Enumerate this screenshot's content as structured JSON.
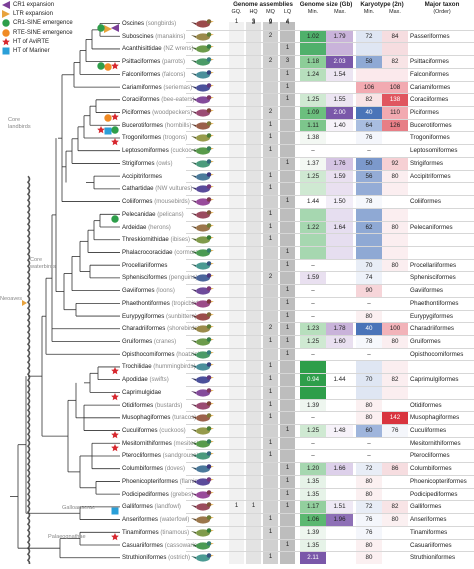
{
  "legend": [
    {
      "label": "CR1 expansion",
      "icon": "purple-triangle-left",
      "color": "#7b3f98"
    },
    {
      "label": "LTR expansion",
      "icon": "orange-triangle-right",
      "color": "#e8a33d"
    },
    {
      "label": "CR1-SINE emergence",
      "icon": "green-circle",
      "color": "#2e9e4a"
    },
    {
      "label": "RTE-SINE emergence",
      "icon": "orange-circle",
      "color": "#f08a24"
    },
    {
      "label": "HT of AviRTE",
      "icon": "red-star",
      "color": "#d7282f"
    },
    {
      "label": "HT of Mariner",
      "icon": "blue-square",
      "color": "#2a9fd8"
    }
  ],
  "headers": {
    "assemblies": "Genome assemblies",
    "gq": "GQ.",
    "hq": "HQ",
    "mq": "MQ",
    "lq": "LQ",
    "assembly_totals": [
      "1",
      "3",
      "9",
      "4"
    ],
    "genome_size": "Genome size (Gb)",
    "gs_min": "Min.",
    "gs_max": "Max.",
    "karyotype": "Karyotype (2n)",
    "ky_min": "Min.",
    "ky_max": "Max.",
    "major_taxon": "Major taxon",
    "order": "(Order)"
  },
  "clades": {
    "core_landbirds": "Core landbirds",
    "core_waterbirds": "Core waterbirds",
    "neoaves": "Neoaves",
    "galloanserae": "Galloanserae",
    "palaeognathae": "Palaeognathae"
  },
  "rows": [
    {
      "name": "Oscines",
      "common": "(songbirds)",
      "gq": "",
      "hq": "3",
      "mq": "9",
      "lq": "4",
      "gs_min": "",
      "gs_max": "",
      "ky_min": "",
      "ky_max": "",
      "order": "",
      "colors": {}
    },
    {
      "name": "Suboscines",
      "common": "(manakins)",
      "gq": "",
      "hq": "",
      "mq": "2",
      "lq": "",
      "gs_min": "1.02",
      "gs_max": "1.79",
      "ky_min": "72",
      "ky_max": "84",
      "order": "Passeriformes",
      "colors": {
        "gsmin": "#4fb06b",
        "gsmax": "#c9b3da",
        "kymin": "#dfe6f3",
        "kymax": "#f6dde0"
      }
    },
    {
      "name": "Acanthisittidae",
      "common": "(NZ wrens)",
      "gq": "",
      "hq": "",
      "mq": "",
      "lq": "1",
      "gs_min": "",
      "gs_max": "",
      "ky_min": "",
      "ky_max": "",
      "order": "",
      "colors": {
        "gsmin": "#4fb06b",
        "gsmax": "#c9b3da",
        "kymin": "#dfe6f3",
        "kymax": "#f6dde0"
      }
    },
    {
      "name": "Psittaciformes",
      "common": "(parrots)",
      "gq": "",
      "hq": "",
      "mq": "2",
      "lq": "3",
      "gs_min": "1.18",
      "gs_max": "2.03",
      "ky_min": "58",
      "ky_max": "82",
      "order": "Psittaciformes",
      "colors": {
        "gsmin": "#8ccd98",
        "gsmax": "#7a58a9",
        "kymin": "#8fa9d4",
        "kymax": "#f8e4e6"
      }
    },
    {
      "name": "Falconiformes",
      "common": "(falcons)",
      "gq": "",
      "hq": "",
      "mq": "",
      "lq": "1",
      "gs_min": "1.24",
      "gs_max": "1.54",
      "ky_min": "",
      "ky_max": "",
      "order": "Falconiformes",
      "colors": {
        "gsmin": "#b7dfbd",
        "gsmax": "#ece5f2",
        "kymin": "#fbe9ec",
        "kymax": "#fbe9ec"
      }
    },
    {
      "name": "Cariamiformes",
      "common": "(seriemas)",
      "gq": "",
      "hq": "",
      "mq": "",
      "lq": "1",
      "gs_min": "",
      "gs_max": "",
      "ky_min": "106",
      "ky_max": "108",
      "order": "Cariamiformes",
      "colors": {
        "kymin": "#f2aab1",
        "kymax": "#f2aab1"
      }
    },
    {
      "name": "Coraciiformes",
      "common": "(bee-eaters)",
      "gq": "",
      "hq": "",
      "mq": "",
      "lq": "1",
      "gs_min": "1.25",
      "gs_max": "1.55",
      "ky_min": "82",
      "ky_max": "138",
      "order": "Coraciiformes",
      "colors": {
        "gsmin": "#cfe9d2",
        "gsmax": "#ece5f2",
        "kymin": "#f8e4e6",
        "kymax": "#e0565f"
      }
    },
    {
      "name": "Piciformes",
      "common": "(woodpeckers)",
      "gq": "",
      "hq": "",
      "mq": "2",
      "lq": "",
      "gs_min": "1.09",
      "gs_max": "2.00",
      "ky_min": "40",
      "ky_max": "110",
      "order": "Piciformes",
      "colors": {
        "gsmin": "#6cbf7e",
        "gsmax": "#7a58a9",
        "kymin": "#4a74b8",
        "kymax": "#f2aab1"
      }
    },
    {
      "name": "Bucerotiformes",
      "common": "(hornbills)",
      "gq": "",
      "hq": "",
      "mq": "1",
      "lq": "",
      "gs_min": "1.11",
      "gs_max": "1.40",
      "ky_min": "64",
      "ky_max": "126",
      "order": "Bucerotiformes",
      "colors": {
        "gsmin": "#7dc68c",
        "gsmax": "#f6f2f9",
        "kymin": "#a9bde0",
        "kymax": "#e77e86"
      }
    },
    {
      "name": "Trogoniformes",
      "common": "(trogons)",
      "gq": "",
      "hq": "",
      "mq": "1",
      "lq": "",
      "gs_min": "1.38",
      "gs_max": "",
      "ky_min": "76",
      "ky_max": "",
      "order": "Trogoniformes",
      "colors": {
        "gsmin": "#f3f8f3",
        "kymin": "#f4f6fb"
      }
    },
    {
      "name": "Leptosomiformes",
      "common": "(cuckoo-roller)",
      "gq": "",
      "hq": "",
      "mq": "1",
      "lq": "",
      "gs_min": "–",
      "gs_max": "",
      "ky_min": "–",
      "ky_max": "",
      "order": "Leptosomiformes",
      "colors": {}
    },
    {
      "name": "Strigiformes",
      "common": "(owls)",
      "gq": "",
      "hq": "",
      "mq": "",
      "lq": "1",
      "gs_min": "1.37",
      "gs_max": "1.76",
      "ky_min": "50",
      "ky_max": "92",
      "order": "Strigiformes",
      "colors": {
        "gsmin": "#f3f8f3",
        "gsmax": "#d5c4e3",
        "kymin": "#7c99cc",
        "kymax": "#f6d0d4"
      }
    },
    {
      "name": "Accipitriformes",
      "common": "",
      "gq": "",
      "hq": "",
      "mq": "1",
      "lq": "",
      "gs_min": "1.25",
      "gs_max": "1.59",
      "ky_min": "56",
      "ky_max": "80",
      "order": "Accipitriformes",
      "colors": {
        "gsmin": "#cfe9d2",
        "gsmax": "#e9e0f0",
        "kymin": "#94acd6",
        "kymax": "#fbeef0"
      }
    },
    {
      "name": "Cathartidae",
      "common": "(NW vultures)",
      "gq": "",
      "hq": "",
      "mq": "1",
      "lq": "",
      "gs_min": "",
      "gs_max": "",
      "ky_min": "",
      "ky_max": "",
      "order": "",
      "colors": {
        "gsmin": "#cfe9d2",
        "gsmax": "#e9e0f0",
        "kymin": "#94acd6",
        "kymax": "#fbeef0"
      }
    },
    {
      "name": "Coliiformes",
      "common": "(mousebirds)",
      "gq": "",
      "hq": "",
      "mq": "",
      "lq": "1",
      "gs_min": "1.44",
      "gs_max": "1.50",
      "ky_min": "78",
      "ky_max": "",
      "order": "Coliiformes",
      "colors": {
        "gsmin": "#ffffff",
        "gsmax": "#f3eef8",
        "kymin": "#f6f8fc"
      }
    },
    {
      "name": "Pelecanidae",
      "common": "(pelicans)",
      "gq": "",
      "hq": "",
      "mq": "1",
      "lq": "",
      "gs_min": "",
      "gs_max": "",
      "ky_min": "",
      "ky_max": "",
      "order": "",
      "colors": {
        "gsmin": "#a6d7b0",
        "gsmax": "#e6def0",
        "kymin": "#8fa9d4",
        "kymax": "#fbeef0"
      }
    },
    {
      "name": "Ardeidae",
      "common": "(herons)",
      "gq": "",
      "hq": "",
      "mq": "1",
      "lq": "",
      "gs_min": "1.22",
      "gs_max": "1.64",
      "ky_min": "62",
      "ky_max": "80",
      "order": "Pelecaniformes",
      "colors": {
        "gsmin": "#a6d7b0",
        "gsmax": "#e6def0",
        "kymin": "#8fa9d4",
        "kymax": "#fbeef0"
      }
    },
    {
      "name": "Threskiornithidae",
      "common": "(ibises)",
      "gq": "",
      "hq": "",
      "mq": "1",
      "lq": "",
      "gs_min": "",
      "gs_max": "",
      "ky_min": "",
      "ky_max": "",
      "order": "",
      "colors": {
        "gsmin": "#a6d7b0",
        "gsmax": "#e6def0",
        "kymin": "#8fa9d4",
        "kymax": "#fbeef0"
      }
    },
    {
      "name": "Phalacrocoracidae",
      "common": "(cormorants)",
      "gq": "",
      "hq": "",
      "mq": "",
      "lq": "1",
      "gs_min": "",
      "gs_max": "",
      "ky_min": "",
      "ky_max": "",
      "order": "",
      "colors": {
        "gsmin": "#a6d7b0",
        "gsmax": "#e6def0",
        "kymin": "#8fa9d4",
        "kymax": "#fbeef0"
      }
    },
    {
      "name": "Procellariiformes",
      "common": "",
      "gq": "",
      "hq": "",
      "mq": "",
      "lq": "1",
      "gs_min": "–",
      "gs_max": "",
      "ky_min": "70",
      "ky_max": "80",
      "order": "Procellariiformes",
      "colors": {
        "kymin": "#e8edf6",
        "kymax": "#fbeef0"
      }
    },
    {
      "name": "Sphenisciformes",
      "common": "(penguins)",
      "gq": "",
      "hq": "",
      "mq": "2",
      "lq": "",
      "gs_min": "1.59",
      "gs_max": "",
      "ky_min": "74",
      "ky_max": "",
      "order": "Sphenisciformes",
      "colors": {
        "gsmin": "#e9e0f0",
        "kymin": "#eef2f9"
      }
    },
    {
      "name": "Gaviiformes",
      "common": "(loons)",
      "gq": "",
      "hq": "",
      "mq": "",
      "lq": "1",
      "gs_min": "–",
      "gs_max": "",
      "ky_min": "90",
      "ky_max": "",
      "order": "Gaviiformes",
      "colors": {
        "kymin": "#f6d5d9"
      }
    },
    {
      "name": "Phaethontiformes",
      "common": "(tropicbirds)",
      "gq": "",
      "hq": "",
      "mq": "",
      "lq": "1",
      "gs_min": "–",
      "gs_max": "",
      "ky_min": "–",
      "ky_max": "",
      "order": "Phaethontiformes",
      "colors": {}
    },
    {
      "name": "Eurypygiformes",
      "common": "(sunbittern)",
      "gq": "",
      "hq": "",
      "mq": "",
      "lq": "1",
      "gs_min": "–",
      "gs_max": "",
      "ky_min": "80",
      "ky_max": "",
      "order": "Eurypygiformes",
      "colors": {
        "kymin": "#fbf0f1"
      }
    },
    {
      "name": "Charadriiformes",
      "common": "(shorebirds)",
      "gq": "",
      "hq": "",
      "mq": "2",
      "lq": "1",
      "gs_min": "1.23",
      "gs_max": "1.78",
      "ky_min": "40",
      "ky_max": "100",
      "order": "Charadriiformes",
      "colors": {
        "gsmin": "#b7dfbd",
        "gsmax": "#c9b3da",
        "kymin": "#4a74b8",
        "kymax": "#f2b3b9"
      }
    },
    {
      "name": "Gruiformes",
      "common": "(cranes)",
      "gq": "",
      "hq": "",
      "mq": "1",
      "lq": "1",
      "gs_min": "1.25",
      "gs_max": "1.60",
      "ky_min": "78",
      "ky_max": "80",
      "order": "Gruiformes",
      "colors": {
        "gsmin": "#cfe9d2",
        "gsmax": "#e9e0f0",
        "kymin": "#f6f8fc",
        "kymax": "#fbeef0"
      }
    },
    {
      "name": "Opisthocomiformes",
      "common": "(hoatzin)",
      "gq": "",
      "hq": "",
      "mq": "",
      "lq": "1",
      "gs_min": "–",
      "gs_max": "",
      "ky_min": "–",
      "ky_max": "",
      "order": "Opisthocomiformes",
      "colors": {}
    },
    {
      "name": "Trochilidae",
      "common": "(hummingbirds)",
      "gq": "",
      "hq": "",
      "mq": "1",
      "lq": "",
      "gs_min": "",
      "gs_max": "",
      "ky_min": "",
      "ky_max": "",
      "order": "",
      "colors": {
        "gsmin": "#2e9e4a",
        "gsmax": "#ffffff",
        "kymin": "#dfe6f3",
        "kymax": "#fbeef0"
      }
    },
    {
      "name": "Apodidae",
      "common": "(swifts)",
      "gq": "",
      "hq": "",
      "mq": "1",
      "lq": "",
      "gs_min": "0.94",
      "gs_max": "1.44",
      "ky_min": "70",
      "ky_max": "82",
      "order": "Caprimulgiformes",
      "colors": {
        "gsmin": "#2e9e4a",
        "gsmax": "#ffffff",
        "kymin": "#dfe6f3",
        "kymax": "#fbeef0"
      }
    },
    {
      "name": "Caprimulgidae",
      "common": "",
      "gq": "",
      "hq": "",
      "mq": "1",
      "lq": "",
      "gs_min": "",
      "gs_max": "",
      "ky_min": "",
      "ky_max": "",
      "order": "",
      "colors": {
        "gsmin": "#2e9e4a",
        "gsmax": "#ffffff",
        "kymin": "#dfe6f3",
        "kymax": "#fbeef0"
      }
    },
    {
      "name": "Otidiformes",
      "common": "(bustards)",
      "gq": "",
      "hq": "",
      "mq": "1",
      "lq": "",
      "gs_min": "1.39",
      "gs_max": "",
      "ky_min": "80",
      "ky_max": "",
      "order": "Otidiformes",
      "colors": {
        "gsmin": "#eef6ef",
        "kymin": "#fbf0f1"
      }
    },
    {
      "name": "Musophagiformes",
      "common": "(turacos)",
      "gq": "",
      "hq": "",
      "mq": "1",
      "lq": "",
      "gs_min": "–",
      "gs_max": "",
      "ky_min": "80",
      "ky_max": "142",
      "order": "Musophagiformes",
      "colors": {
        "kymin": "#fbf0f1",
        "kymax": "#d9353f"
      }
    },
    {
      "name": "Cuculiformes",
      "common": "(cuckoos)",
      "gq": "",
      "hq": "",
      "mq": "",
      "lq": "1",
      "gs_min": "1.25",
      "gs_max": "1.48",
      "ky_min": "60",
      "ky_max": "76",
      "order": "Cuculiformes",
      "colors": {
        "gsmin": "#cfe9d2",
        "gsmax": "#f6f2f9",
        "kymin": "#9fb5dc",
        "kymax": "#f4f6fb"
      }
    },
    {
      "name": "Mesitornithiformes",
      "common": "(mesites)",
      "gq": "",
      "hq": "",
      "mq": "1",
      "lq": "",
      "gs_min": "–",
      "gs_max": "",
      "ky_min": "–",
      "ky_max": "",
      "order": "Mesitornithiformes",
      "colors": {}
    },
    {
      "name": "Pterocliformes",
      "common": "(sandgrouse)",
      "gq": "",
      "hq": "",
      "mq": "1",
      "lq": "",
      "gs_min": "–",
      "gs_max": "",
      "ky_min": "–",
      "ky_max": "",
      "order": "Pterocliformes",
      "colors": {}
    },
    {
      "name": "Columbiformes",
      "common": "(doves)",
      "gq": "",
      "hq": "",
      "mq": "",
      "lq": "1",
      "gs_min": "1.20",
      "gs_max": "1.66",
      "ky_min": "72",
      "ky_max": "86",
      "order": "Columbiformes",
      "colors": {
        "gsmin": "#a6d7b0",
        "gsmax": "#ddd0ea",
        "kymin": "#e8edf6",
        "kymax": "#f6dde0"
      }
    },
    {
      "name": "Phoenicopteriformes",
      "common": "(flamingos)",
      "gq": "",
      "hq": "",
      "mq": "",
      "lq": "1",
      "gs_min": "1.35",
      "gs_max": "",
      "ky_min": "80",
      "ky_max": "",
      "order": "Phoenicopteriformes",
      "colors": {
        "gsmin": "#e6f3e8",
        "kymin": "#fbf0f1"
      }
    },
    {
      "name": "Podicipediformes",
      "common": "(grebes)",
      "gq": "",
      "hq": "",
      "mq": "",
      "lq": "1",
      "gs_min": "1.35",
      "gs_max": "",
      "ky_min": "80",
      "ky_max": "",
      "order": "Podicipediformes",
      "colors": {
        "gsmin": "#e6f3e8",
        "kymin": "#fbf0f1"
      }
    },
    {
      "name": "Galliformes",
      "common": "(landfowl)",
      "gq": "1",
      "hq": "1",
      "mq": "",
      "lq": "1",
      "gs_min": "1.17",
      "gs_max": "1.51",
      "ky_min": "72",
      "ky_max": "82",
      "order": "Galliformes",
      "colors": {
        "gsmin": "#93cf9e",
        "gsmax": "#efe9f5",
        "kymin": "#e8edf6",
        "kymax": "#f8e4e6"
      }
    },
    {
      "name": "Anseriformes",
      "common": "(waterfowl)",
      "gq": "",
      "hq": "",
      "mq": "1",
      "lq": "",
      "gs_min": "1.06",
      "gs_max": "1.96",
      "ky_min": "76",
      "ky_max": "80",
      "order": "Anseriformes",
      "colors": {
        "gsmin": "#5cb871",
        "gsmax": "#8e70b6",
        "kymin": "#f4f6fb",
        "kymax": "#fbf0f1"
      }
    },
    {
      "name": "Tinamiformes",
      "common": "(tinamous)",
      "gq": "",
      "hq": "",
      "mq": "1",
      "lq": "",
      "gs_min": "1.39",
      "gs_max": "",
      "ky_min": "76",
      "ky_max": "",
      "order": "Tinamiformes",
      "colors": {
        "gsmin": "#eef6ef",
        "kymin": "#f4f6fb"
      }
    },
    {
      "name": "Casuariiformes",
      "common": "(cassowaries)",
      "gq": "",
      "hq": "",
      "mq": "",
      "lq": "1",
      "gs_min": "1.35",
      "gs_max": "",
      "ky_min": "80",
      "ky_max": "",
      "order": "Casuariiformes",
      "colors": {
        "gsmin": "#e6f3e8",
        "kymin": "#fbf0f1"
      }
    },
    {
      "name": "Struthioniformes",
      "common": "(ostrich)",
      "gq": "",
      "hq": "",
      "mq": "1",
      "lq": "",
      "gs_min": "2.11",
      "gs_max": "",
      "ky_min": "80",
      "ky_max": "",
      "order": "Struthioniformes",
      "colors": {
        "gsmin": "#7a58a9",
        "kymin": "#fbf0f1"
      }
    }
  ],
  "markers": [
    {
      "row": 0,
      "shapes": [
        "purple-triangle-left",
        "orange-triangle-right",
        "green-circle"
      ]
    },
    {
      "row": 3,
      "shapes": [
        "red-star",
        "orange-circle",
        "green-circle"
      ]
    },
    {
      "row": 7,
      "shapes": [
        "red-star",
        "orange-circle"
      ]
    },
    {
      "row": 8,
      "shapes": [
        "green-circle",
        "blue-square",
        "red-star"
      ]
    },
    {
      "row": 9,
      "shapes": [
        "red-star"
      ]
    },
    {
      "row": 15,
      "shapes": [
        "green-circle"
      ]
    },
    {
      "row": 27,
      "shapes": [
        "red-star"
      ]
    },
    {
      "row": 29,
      "shapes": [
        "red-star"
      ]
    },
    {
      "row": 32,
      "shapes": [
        "red-star"
      ]
    },
    {
      "row": 33,
      "shapes": [
        "red-star"
      ]
    },
    {
      "row": 38,
      "shapes": [
        "blue-square"
      ]
    },
    {
      "row": 40,
      "shapes": [
        "red-star"
      ]
    }
  ]
}
